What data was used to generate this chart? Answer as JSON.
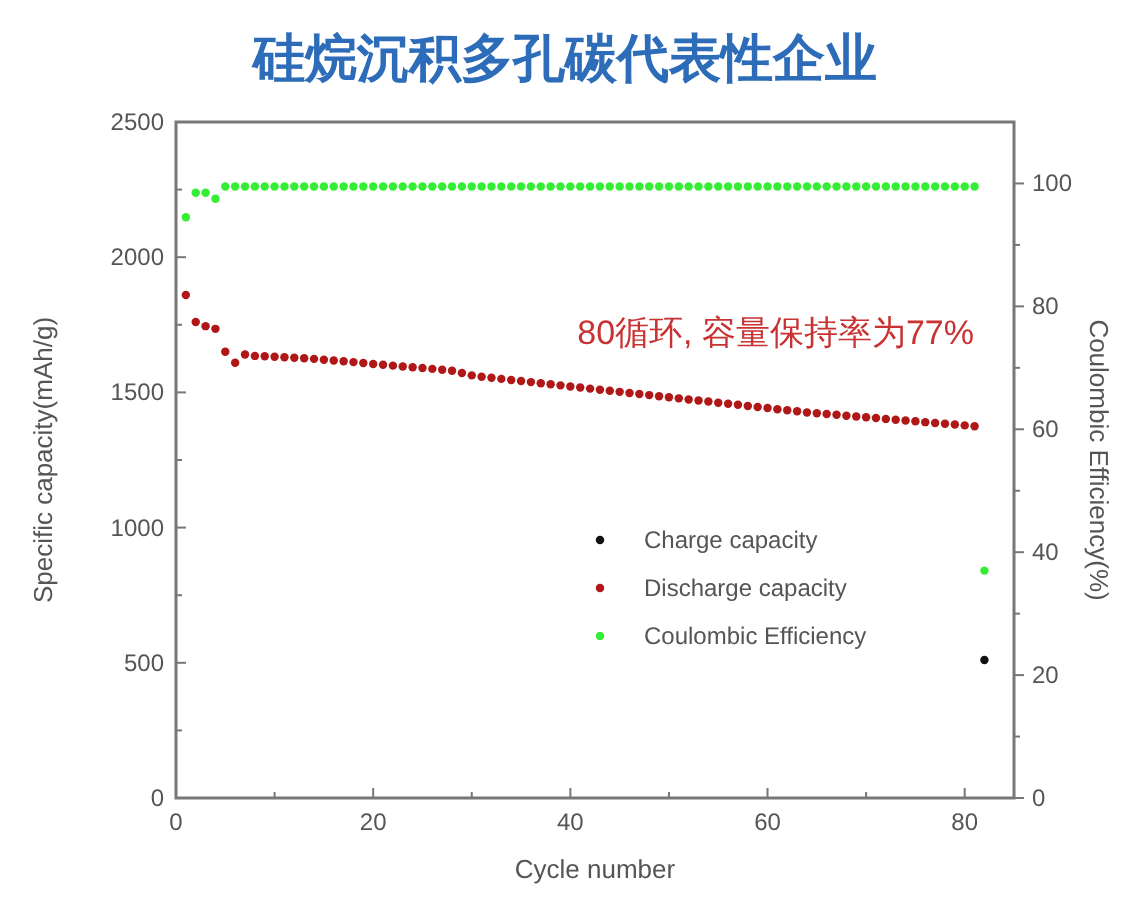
{
  "chart_data": {
    "type": "scatter",
    "title": "硅烷沉积多孔碳代表性企业",
    "xlabel": "Cycle number",
    "ylabel": "Specific capacity(mAh/g)",
    "y2label": "Coulombic Efficiency(%)",
    "annotations": [
      "80循环, 容量保持率为77%"
    ],
    "x": [
      1,
      2,
      3,
      4,
      5,
      6,
      7,
      8,
      9,
      10,
      11,
      12,
      13,
      14,
      15,
      16,
      17,
      18,
      19,
      20,
      21,
      22,
      23,
      24,
      25,
      26,
      27,
      28,
      29,
      30,
      31,
      32,
      33,
      34,
      35,
      36,
      37,
      38,
      39,
      40,
      41,
      42,
      43,
      44,
      45,
      46,
      47,
      48,
      49,
      50,
      51,
      52,
      53,
      54,
      55,
      56,
      57,
      58,
      59,
      60,
      61,
      62,
      63,
      64,
      65,
      66,
      67,
      68,
      69,
      70,
      71,
      72,
      73,
      74,
      75,
      76,
      77,
      78,
      79,
      80,
      81,
      82
    ],
    "series": [
      {
        "name": "Charge capacity",
        "color": "#111111",
        "values": [
          null,
          null,
          null,
          null,
          null,
          null,
          null,
          null,
          null,
          null,
          null,
          null,
          null,
          null,
          null,
          null,
          null,
          null,
          null,
          null,
          null,
          null,
          null,
          null,
          null,
          null,
          null,
          null,
          null,
          null,
          null,
          null,
          null,
          null,
          null,
          null,
          null,
          null,
          null,
          null,
          null,
          null,
          null,
          null,
          null,
          null,
          null,
          null,
          null,
          null,
          null,
          null,
          null,
          null,
          null,
          null,
          null,
          null,
          null,
          null,
          null,
          null,
          null,
          null,
          null,
          null,
          null,
          null,
          null,
          null,
          null,
          null,
          null,
          null,
          null,
          null,
          null,
          null,
          null,
          null,
          null,
          510
        ]
      },
      {
        "name": "Discharge capacity",
        "color": "#b01818",
        "values": [
          1860,
          1760,
          1745,
          1735,
          1650,
          1610,
          1640,
          1635,
          1634,
          1632,
          1630,
          1628,
          1626,
          1624,
          1621,
          1618,
          1615,
          1612,
          1609,
          1605,
          1602,
          1599,
          1596,
          1593,
          1590,
          1587,
          1584,
          1580,
          1572,
          1563,
          1558,
          1554,
          1550,
          1546,
          1542,
          1538,
          1534,
          1530,
          1526,
          1522,
          1518,
          1514,
          1510,
          1506,
          1502,
          1498,
          1494,
          1490,
          1486,
          1482,
          1478,
          1474,
          1470,
          1466,
          1462,
          1458,
          1454,
          1450,
          1446,
          1442,
          1438,
          1434,
          1430,
          1426,
          1423,
          1420,
          1417,
          1414,
          1411,
          1408,
          1405,
          1402,
          1399,
          1396,
          1393,
          1390,
          1387,
          1384,
          1381,
          1378,
          1375,
          null
        ]
      },
      {
        "name": "Coulombic Efficiency",
        "color": "#33ee33",
        "axis": "y2",
        "values": [
          94.5,
          98.5,
          98.5,
          97.5,
          99.5,
          99.5,
          99.5,
          99.5,
          99.5,
          99.5,
          99.5,
          99.5,
          99.5,
          99.5,
          99.5,
          99.5,
          99.5,
          99.5,
          99.5,
          99.5,
          99.5,
          99.5,
          99.5,
          99.5,
          99.5,
          99.5,
          99.5,
          99.5,
          99.5,
          99.5,
          99.5,
          99.5,
          99.5,
          99.5,
          99.5,
          99.5,
          99.5,
          99.5,
          99.5,
          99.5,
          99.5,
          99.5,
          99.5,
          99.5,
          99.5,
          99.5,
          99.5,
          99.5,
          99.5,
          99.5,
          99.5,
          99.5,
          99.5,
          99.5,
          99.5,
          99.5,
          99.5,
          99.5,
          99.5,
          99.5,
          99.5,
          99.5,
          99.5,
          99.5,
          99.5,
          99.5,
          99.5,
          99.5,
          99.5,
          99.5,
          99.5,
          99.5,
          99.5,
          99.5,
          99.5,
          99.5,
          99.5,
          99.5,
          99.5,
          99.5,
          99.5,
          37
        ]
      }
    ],
    "xlim": [
      0,
      85
    ],
    "xticks": [
      0,
      {
        "value": 10,
        "label": null
      },
      20,
      {
        "value": 30,
        "label": null
      },
      40,
      {
        "value": 50,
        "label": null
      },
      60,
      {
        "value": 70,
        "label": null
      },
      80
    ],
    "ylim": [
      0,
      2500
    ],
    "yticks": [
      0,
      {
        "value": 250,
        "label": null
      },
      500,
      {
        "value": 750,
        "label": null
      },
      1000,
      {
        "value": 1250,
        "label": null
      },
      1500,
      {
        "value": 1750,
        "label": null
      },
      2000,
      {
        "value": 2250,
        "label": null
      },
      2500
    ],
    "y2lim": [
      0,
      110
    ],
    "y2ticks": [
      0,
      {
        "value": 10,
        "label": null
      },
      20,
      {
        "value": 30,
        "label": null
      },
      40,
      {
        "value": 50,
        "label": null
      },
      60,
      {
        "value": 70,
        "label": null
      },
      80,
      {
        "value": 90,
        "label": null
      },
      100
    ],
    "marker": "circle",
    "legend": "bottom right",
    "grid": false
  }
}
